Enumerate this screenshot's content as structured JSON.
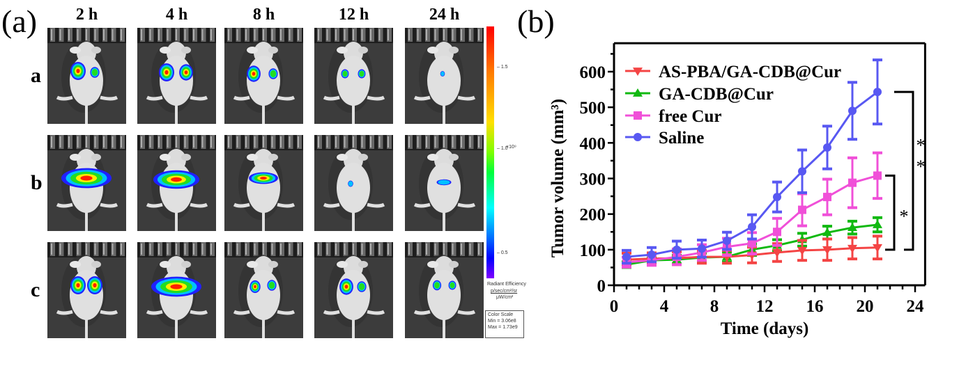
{
  "figure": {
    "panel_a_label": "(a)",
    "panel_b_label": "(b)",
    "time_points": [
      "2 h",
      "4 h",
      "8 h",
      "12 h",
      "24 h"
    ],
    "groups": [
      "a",
      "b",
      "c"
    ],
    "colorbar": {
      "ticks": [
        "1.5",
        "1.0",
        "0.5"
      ],
      "exponent": "×10⁹",
      "title": "Radiant Efficiency",
      "unit_numerator": "p/sec/cm²/sr",
      "unit_denominator": "μW/cm²",
      "scale_title": "Color Scale",
      "scale_min": "Min = 3.06e8",
      "scale_max": "Max = 1.73e9",
      "colors": [
        "#ff0000",
        "#ffe000",
        "#00ff3c",
        "#00ffff",
        "#0000ff",
        "#8000ff"
      ]
    }
  },
  "chart_data": {
    "type": "line",
    "title": "",
    "xlabel": "Time (days)",
    "ylabel": "Tumor volume (mm³)",
    "xlim": [
      0,
      24.8
    ],
    "ylim": [
      0,
      680
    ],
    "xticks": [
      0,
      4,
      8,
      12,
      16,
      20,
      24
    ],
    "yticks": [
      0,
      100,
      200,
      300,
      400,
      500,
      600
    ],
    "grid": false,
    "legend": "top-left",
    "x": [
      1,
      3,
      5,
      7,
      9,
      11,
      13,
      15,
      17,
      19,
      21
    ],
    "series": [
      {
        "name": "AS-PBA/GA-CDB@Cur",
        "color": "#f44444",
        "marker": "triangle-down",
        "values": [
          72,
          75,
          76,
          80,
          80,
          85,
          92,
          98,
          100,
          104,
          106
        ],
        "errors": [
          18,
          16,
          18,
          18,
          18,
          22,
          25,
          28,
          30,
          30,
          32
        ]
      },
      {
        "name": "GA-CDB@Cur",
        "color": "#11b911",
        "marker": "triangle-up",
        "values": [
          58,
          70,
          72,
          78,
          80,
          100,
          112,
          128,
          148,
          162,
          170
        ],
        "errors": [
          8,
          10,
          12,
          12,
          14,
          16,
          16,
          18,
          18,
          18,
          20
        ]
      },
      {
        "name": "free Cur",
        "color": "#f050d8",
        "marker": "square",
        "values": [
          65,
          70,
          80,
          92,
          108,
          118,
          150,
          212,
          248,
          288,
          308
        ],
        "errors": [
          14,
          14,
          22,
          22,
          24,
          30,
          38,
          45,
          50,
          70,
          64
        ]
      },
      {
        "name": "Saline",
        "color": "#5858f2",
        "marker": "circle",
        "values": [
          80,
          86,
          100,
          103,
          125,
          164,
          248,
          320,
          387,
          490,
          543
        ],
        "errors": [
          18,
          20,
          24,
          24,
          24,
          34,
          42,
          60,
          60,
          80,
          90
        ]
      }
    ],
    "annotations": [
      {
        "text": "*",
        "between": [
          "free Cur",
          "AS-PBA/GA-CDB@Cur"
        ]
      },
      {
        "text": "**",
        "between": [
          "Saline",
          "AS-PBA/GA-CDB@Cur"
        ]
      }
    ]
  }
}
